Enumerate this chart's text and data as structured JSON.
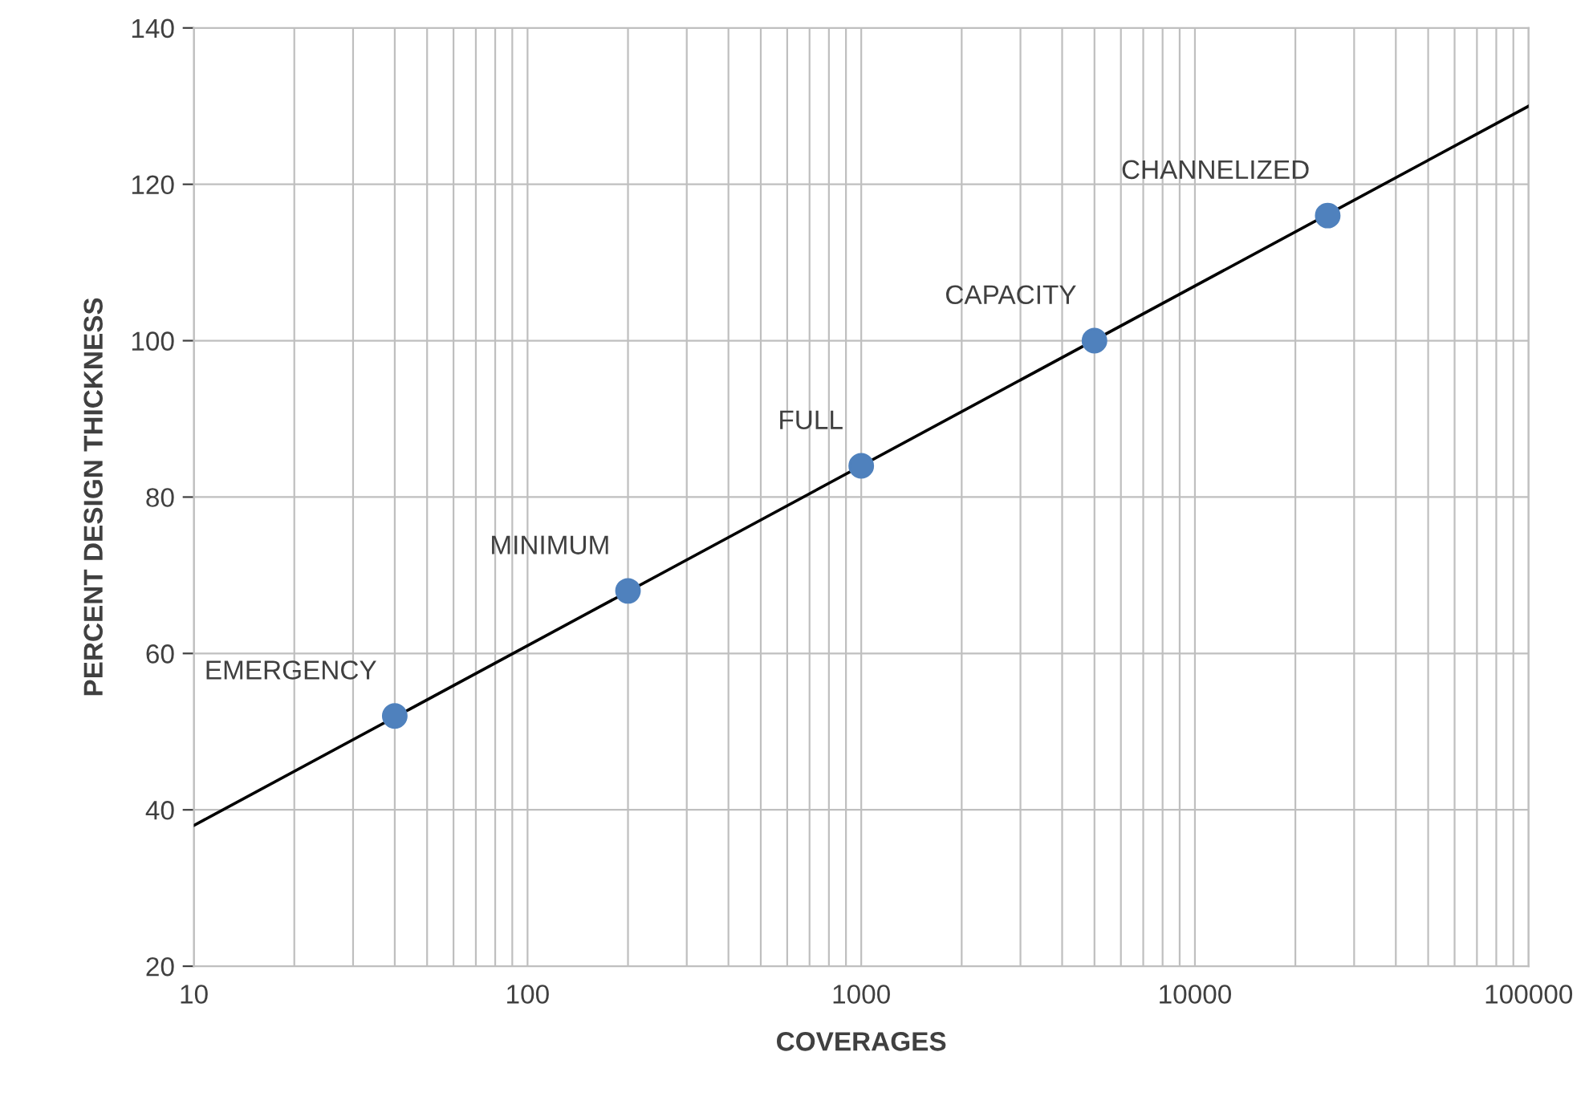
{
  "chart_data": {
    "type": "scatter",
    "xlabel": "COVERAGES",
    "ylabel": "PERCENT DESIGN THICKNESS",
    "log": "x",
    "xlim": [
      10,
      100000
    ],
    "xticks": [
      10,
      100,
      1000,
      10000,
      100000
    ],
    "ylim": [
      20,
      140
    ],
    "yticks": [
      20,
      40,
      60,
      80,
      100,
      120,
      140
    ],
    "grid": true,
    "marker": "circle",
    "series": [
      {
        "color": "#4f81bd",
        "x": [
          40,
          200,
          1000,
          5000,
          25000
        ],
        "values": [
          52,
          68,
          84,
          100,
          116
        ]
      },
      {
        "type": "line",
        "color": "#000000",
        "marker": "none",
        "x": [
          10,
          100000
        ],
        "values": [
          38,
          130
        ]
      }
    ],
    "annotations": [
      {
        "text": "EMERGENCY",
        "x": 40,
        "y": 52
      },
      {
        "text": "MINIMUM",
        "x": 200,
        "y": 68
      },
      {
        "text": "FULL",
        "x": 1000,
        "y": 84
      },
      {
        "text": "CAPACITY",
        "x": 5000,
        "y": 100
      },
      {
        "text": "CHANNELIZED",
        "x": 25000,
        "y": 116
      }
    ]
  }
}
